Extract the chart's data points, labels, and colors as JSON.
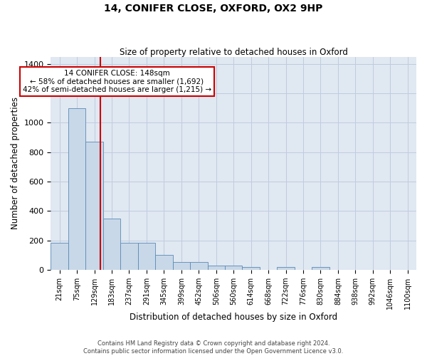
{
  "title1": "14, CONIFER CLOSE, OXFORD, OX2 9HP",
  "title2": "Size of property relative to detached houses in Oxford",
  "xlabel": "Distribution of detached houses by size in Oxford",
  "ylabel": "Number of detached properties",
  "footer1": "Contains HM Land Registry data © Crown copyright and database right 2024.",
  "footer2": "Contains public sector information licensed under the Open Government Licence v3.0.",
  "bin_labels": [
    "21sqm",
    "75sqm",
    "129sqm",
    "183sqm",
    "237sqm",
    "291sqm",
    "345sqm",
    "399sqm",
    "452sqm",
    "506sqm",
    "560sqm",
    "614sqm",
    "668sqm",
    "722sqm",
    "776sqm",
    "830sqm",
    "884sqm",
    "938sqm",
    "992sqm",
    "1046sqm",
    "1100sqm"
  ],
  "bar_values": [
    183,
    1100,
    870,
    350,
    183,
    183,
    100,
    55,
    55,
    30,
    30,
    18,
    0,
    18,
    0,
    18,
    0,
    0,
    0,
    0,
    0
  ],
  "bar_color": "#c8d8e8",
  "bar_edge_color": "#5a8ab5",
  "vline_color": "#cc0000",
  "vline_x": 2.35,
  "annotation_text": "14 CONIFER CLOSE: 148sqm\n← 58% of detached houses are smaller (1,692)\n42% of semi-detached houses are larger (1,215) →",
  "annotation_box_edgecolor": "#cc0000",
  "ylim": [
    0,
    1450
  ],
  "yticks": [
    0,
    200,
    400,
    600,
    800,
    1000,
    1200,
    1400
  ],
  "grid_color": "#c0ccdd",
  "background_color": "#e0e8f2"
}
